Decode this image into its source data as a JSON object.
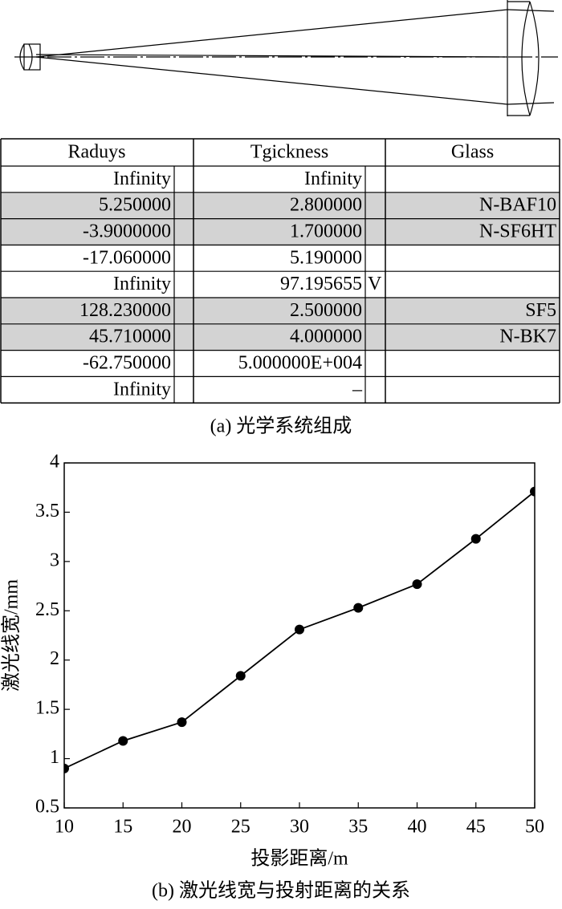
{
  "table": {
    "headers": [
      "Raduys",
      "Tgickness",
      "Glass"
    ],
    "rows": [
      [
        "Infinity",
        "",
        "Infinity",
        "",
        ""
      ],
      [
        "5.250000",
        "",
        "2.800000",
        "",
        "N-BAF10"
      ],
      [
        "-3.9000000",
        "",
        "1.700000",
        "",
        "N-SF6HT"
      ],
      [
        "-17.060000",
        "",
        "5.190000",
        "",
        ""
      ],
      [
        "Infinity",
        "",
        "97.195655",
        "V",
        ""
      ],
      [
        "128.230000",
        "",
        "2.500000",
        "",
        "SF5"
      ],
      [
        "45.710000",
        "",
        "4.000000",
        "",
        "N-BK7"
      ],
      [
        "-62.750000",
        "",
        "5.000000E+004",
        "",
        ""
      ],
      [
        "Infinity",
        "",
        "–",
        "",
        ""
      ]
    ],
    "shaded_rows": [
      1,
      2,
      5,
      6
    ],
    "shade_color": "#d3d3d3"
  },
  "caption_a": "(a) 光学系统组成",
  "chart_data": {
    "type": "line",
    "x_label": "投影距离/m",
    "y_label": "激光线宽/mm",
    "x": [
      10,
      15,
      20,
      25,
      30,
      35,
      40,
      45,
      50
    ],
    "series": [
      {
        "name": "激光线宽",
        "color": "#000000",
        "values": [
          0.9,
          1.18,
          1.37,
          1.84,
          2.31,
          2.53,
          2.77,
          3.23,
          3.71
        ]
      }
    ],
    "xlim": [
      10,
      50
    ],
    "xticks": [
      10,
      15,
      20,
      25,
      30,
      35,
      40,
      45,
      50
    ],
    "ylim": [
      0.5,
      4
    ],
    "yticks": [
      0.5,
      1,
      1.5,
      2,
      2.5,
      3,
      3.5,
      4
    ],
    "grid": false
  },
  "caption_b": "(b) 激光线宽与投射距离的关系"
}
